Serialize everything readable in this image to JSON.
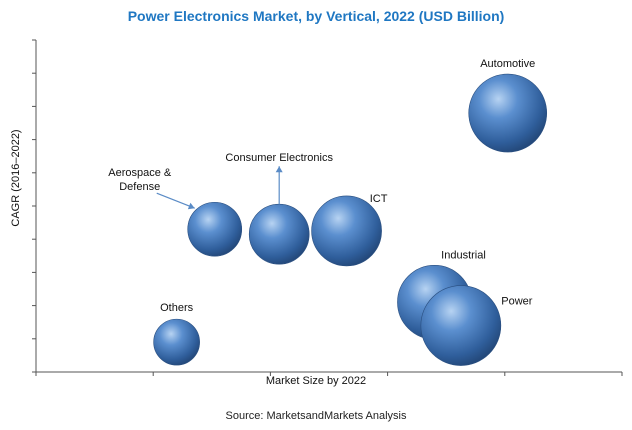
{
  "chart_data": {
    "type": "bubble",
    "title": "Power Electronics Market, by Vertical, 2022 (USD Billion)",
    "xlabel": "Market Size by 2022",
    "ylabel": "CAGR (2016–2022)",
    "xlim": [
      0,
      100
    ],
    "ylim": [
      0,
      100
    ],
    "x_tick_count": 6,
    "y_tick_count": 11,
    "grid": false,
    "bubble_color": "#3b6ea8",
    "series": [
      {
        "name": "Automotive",
        "x": 80.5,
        "y": 78,
        "size": 39,
        "label": "Automotive"
      },
      {
        "name": "Consumer Electronics",
        "x": 41.5,
        "y": 41.5,
        "size": 30,
        "label": "Consumer Electronics"
      },
      {
        "name": "Aerospace & Defense",
        "x": 30.5,
        "y": 43,
        "size": 27,
        "label": "Aerospace &\nDefense"
      },
      {
        "name": "ICT",
        "x": 53,
        "y": 42.5,
        "size": 35,
        "label": "ICT"
      },
      {
        "name": "Industrial",
        "x": 68,
        "y": 21,
        "size": 37,
        "label": "Industrial"
      },
      {
        "name": "Power",
        "x": 72.5,
        "y": 14,
        "size": 40,
        "label": "Power"
      },
      {
        "name": "Others",
        "x": 24,
        "y": 9,
        "size": 23,
        "label": "Others"
      }
    ]
  },
  "source": "Source: MarketsandMarkets Analysis"
}
